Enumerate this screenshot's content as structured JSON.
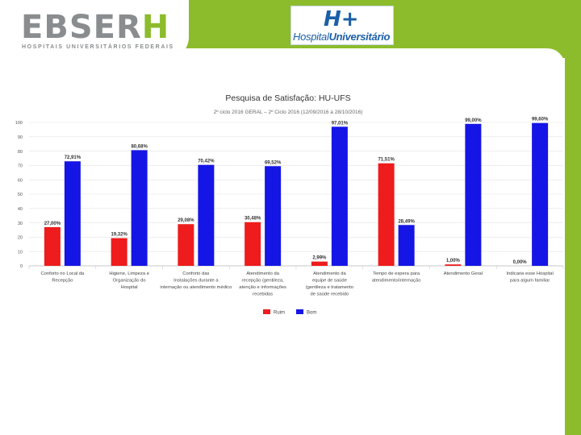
{
  "header": {
    "logo_main": "EBSER",
    "logo_accent": "H",
    "logo_subtitle": "HOSPITAIS UNIVERSITÁRIOS FEDERAIS",
    "hospital_logo_part1": "Hospital",
    "hospital_logo_part2": "Universitário",
    "colors": {
      "brand_green": "#8cbc2c",
      "logo_gray": "#8a8d8f",
      "hu_blue": "#1b5fa8"
    }
  },
  "chart_data": {
    "type": "bar",
    "title": "Pesquisa de Satisfação: HU-UFS",
    "subtitle": "2º ciclo 2016 GERAL – 2º Ciclo 2016 (12/09/2016 a 28/10/2016)",
    "xlabel": "",
    "ylabel": "",
    "ylim": [
      0,
      100
    ],
    "yticks": [
      "0",
      "10",
      "20",
      "30",
      "40",
      "50",
      "60",
      "70",
      "80",
      "90",
      "100"
    ],
    "grid": true,
    "legend_position": "bottom",
    "categories": [
      [
        "Conforto no Local da",
        "Recepção"
      ],
      [
        "Higiene, Limpeza e",
        "Organização do",
        "Hospital"
      ],
      [
        "Conforto das",
        "Instalações durante a",
        "internação ou atendimento médico"
      ],
      [
        "Atendimento da",
        "recepção (gentileza,",
        "atenção e informações",
        "recebidas"
      ],
      [
        "Atendimento da",
        "equipe de saúde",
        "(gentileza e tratamento",
        "de saúde recebido"
      ],
      [
        "Tempo de espera para",
        "atendimento/internação"
      ],
      [
        "Atendimento Geral"
      ],
      [
        "Indicaria esse Hospital",
        "para algum familiar"
      ]
    ],
    "series": [
      {
        "name": "Ruim",
        "color": "#ee1c1c",
        "values": [
          27.0,
          19.32,
          29.08,
          30.48,
          2.99,
          71.51,
          1.0,
          0.0
        ],
        "labels": [
          "27,00%",
          "19,32%",
          "29,08%",
          "30,48%",
          "2,99%",
          "71,51%",
          "1,00%",
          "0,00%"
        ]
      },
      {
        "name": "Bom",
        "color": "#1515e6",
        "values": [
          72.91,
          80.68,
          70.42,
          69.52,
          97.01,
          28.49,
          99.0,
          99.6
        ],
        "labels": [
          "72,91%",
          "80,68%",
          "70,42%",
          "69,52%",
          "97,01%",
          "28,49%",
          "99,00%",
          "99,60%"
        ]
      }
    ]
  }
}
